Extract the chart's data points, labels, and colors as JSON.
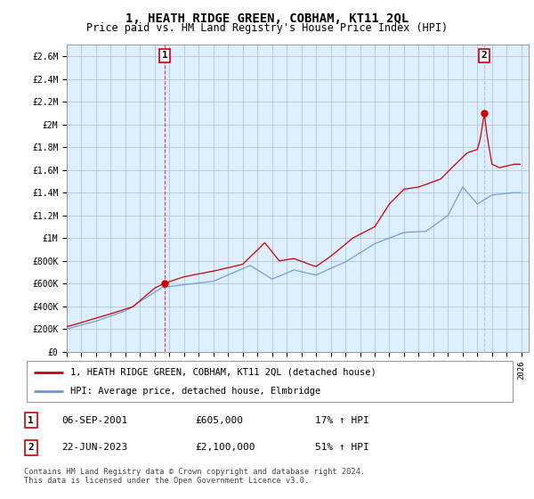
{
  "title": "1, HEATH RIDGE GREEN, COBHAM, KT11 2QL",
  "subtitle": "Price paid vs. HM Land Registry's House Price Index (HPI)",
  "title_fontsize": 10,
  "subtitle_fontsize": 8.5,
  "background_color": "#ffffff",
  "plot_bg_color": "#ddeeff",
  "grid_color": "#aabbcc",
  "ylabel_ticks": [
    "£0",
    "£200K",
    "£400K",
    "£600K",
    "£800K",
    "£1M",
    "£1.2M",
    "£1.4M",
    "£1.6M",
    "£1.8M",
    "£2M",
    "£2.2M",
    "£2.4M",
    "£2.6M"
  ],
  "ytick_values": [
    0,
    200000,
    400000,
    600000,
    800000,
    1000000,
    1200000,
    1400000,
    1600000,
    1800000,
    2000000,
    2200000,
    2400000,
    2600000
  ],
  "ylim": [
    0,
    2700000
  ],
  "xlim_start": 1995.0,
  "xlim_end": 2026.5,
  "sale1_x": 2001.68,
  "sale1_y": 605000,
  "sale1_label": "1",
  "sale2_x": 2023.47,
  "sale2_y": 2100000,
  "sale2_label": "2",
  "legend_entries": [
    {
      "label": "1, HEATH RIDGE GREEN, COBHAM, KT11 2QL (detached house)",
      "color": "#cc0000"
    },
    {
      "label": "HPI: Average price, detached house, Elmbridge",
      "color": "#6699cc"
    }
  ],
  "table_rows": [
    {
      "num": "1",
      "date": "06-SEP-2001",
      "price": "£605,000",
      "hpi": "17% ↑ HPI"
    },
    {
      "num": "2",
      "date": "22-JUN-2023",
      "price": "£2,100,000",
      "hpi": "51% ↑ HPI"
    }
  ],
  "footer": "Contains HM Land Registry data © Crown copyright and database right 2024.\nThis data is licensed under the Open Government Licence v3.0.",
  "hpi_line_color": "#6699cc",
  "price_line_color": "#cc0000"
}
